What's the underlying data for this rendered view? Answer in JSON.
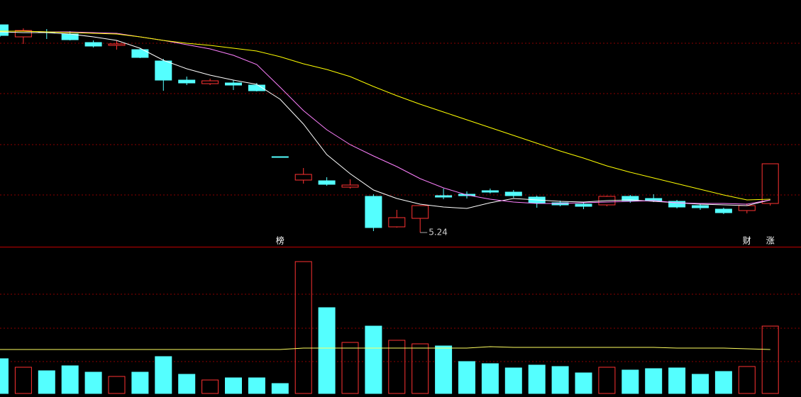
{
  "chart_data": [
    {
      "type": "candlestick",
      "open": [
        8.17,
        8.0,
        8.07,
        8.04,
        7.92,
        7.88,
        7.82,
        7.66,
        7.39,
        7.34,
        7.35,
        7.32,
        6.31,
        5.98,
        5.97,
        5.88,
        5.75,
        5.32,
        5.44,
        5.76,
        5.78,
        5.83,
        5.81,
        5.74,
        5.66,
        5.64,
        5.63,
        5.75,
        5.72,
        5.68,
        5.62,
        5.57,
        5.55,
        5.65
      ],
      "high": [
        8.17,
        8.12,
        8.11,
        8.08,
        7.95,
        7.95,
        7.84,
        7.69,
        7.44,
        7.41,
        7.39,
        7.35,
        6.31,
        6.15,
        6.02,
        5.99,
        5.78,
        5.56,
        5.62,
        5.86,
        5.82,
        5.86,
        5.84,
        5.76,
        5.69,
        5.67,
        5.76,
        5.77,
        5.78,
        5.7,
        5.64,
        5.59,
        5.65,
        6.21
      ],
      "low": [
        8.0,
        7.9,
        7.97,
        7.95,
        7.85,
        7.82,
        7.7,
        7.24,
        7.32,
        7.32,
        7.25,
        7.23,
        6.31,
        5.93,
        5.9,
        5.86,
        5.26,
        5.31,
        5.24,
        5.71,
        5.72,
        5.79,
        5.73,
        5.59,
        5.61,
        5.57,
        5.61,
        5.66,
        5.67,
        5.58,
        5.56,
        5.5,
        5.51,
        5.62
      ],
      "close": [
        8.02,
        8.09,
        8.06,
        7.96,
        7.87,
        7.9,
        7.71,
        7.39,
        7.35,
        7.38,
        7.32,
        7.24,
        6.31,
        6.06,
        5.92,
        5.91,
        5.31,
        5.45,
        5.62,
        5.74,
        5.76,
        5.81,
        5.76,
        5.66,
        5.63,
        5.61,
        5.75,
        5.69,
        5.69,
        5.6,
        5.59,
        5.52,
        5.62,
        6.21
      ],
      "up_color": "#ff3232",
      "down_color": "#54ffff",
      "ylim": [
        5.04,
        8.52
      ],
      "ma_series": [
        {
          "color": "#ffffff",
          "values": [
            8.07,
            8.06,
            8.06,
            8.04,
            8.0,
            7.95,
            7.84,
            7.67,
            7.55,
            7.46,
            7.39,
            7.33,
            7.12,
            6.77,
            6.34,
            6.07,
            5.84,
            5.72,
            5.64,
            5.6,
            5.58,
            5.66,
            5.72,
            5.7,
            5.68,
            5.67,
            5.69,
            5.7,
            5.68,
            5.66,
            5.64,
            5.63,
            5.62,
            5.7
          ]
        },
        {
          "color": "#ff80ff",
          "values": [
            8.08,
            8.08,
            8.07,
            8.07,
            8.06,
            8.05,
            8.0,
            7.95,
            7.89,
            7.83,
            7.74,
            7.61,
            7.29,
            6.96,
            6.69,
            6.48,
            6.32,
            6.17,
            6.0,
            5.87,
            5.77,
            5.71,
            5.67,
            5.65,
            5.65,
            5.66,
            5.67,
            5.68,
            5.69,
            5.66,
            5.65,
            5.65,
            5.64,
            5.7
          ]
        },
        {
          "color": "#ffff00",
          "values": [
            8.08,
            8.08,
            8.07,
            8.06,
            8.05,
            8.04,
            8.0,
            7.95,
            7.91,
            7.88,
            7.84,
            7.8,
            7.72,
            7.62,
            7.54,
            7.44,
            7.3,
            7.17,
            7.05,
            6.94,
            6.83,
            6.72,
            6.61,
            6.5,
            6.39,
            6.29,
            6.18,
            6.09,
            6.01,
            5.93,
            5.85,
            5.77,
            5.7,
            5.71
          ]
        }
      ],
      "markers": [
        null,
        null,
        null,
        null,
        null,
        null,
        null,
        null,
        null,
        null,
        null,
        null,
        "榜",
        null,
        null,
        null,
        null,
        null,
        null,
        null,
        null,
        null,
        null,
        null,
        null,
        null,
        null,
        null,
        null,
        null,
        null,
        null,
        "财",
        "涨"
      ],
      "low_label": 5.24
    },
    {
      "type": "bar",
      "values": [
        49,
        37,
        32,
        39,
        30,
        24,
        30,
        52,
        27,
        19,
        22,
        22,
        14,
        186,
        121,
        72,
        95,
        75,
        70,
        67,
        45,
        42,
        36,
        40,
        38,
        29,
        37,
        33,
        35,
        36,
        27,
        31,
        38,
        95
      ],
      "ylim": [
        0,
        200
      ],
      "ma": {
        "color": "#ffff60",
        "values": [
          62,
          62,
          62,
          62,
          62,
          62,
          62,
          62,
          62,
          62,
          62,
          62,
          62,
          64,
          64,
          64,
          64,
          64,
          64,
          64,
          64,
          66,
          65,
          65,
          65,
          65,
          65,
          65,
          65,
          64,
          64,
          64,
          63,
          62
        ]
      }
    }
  ]
}
